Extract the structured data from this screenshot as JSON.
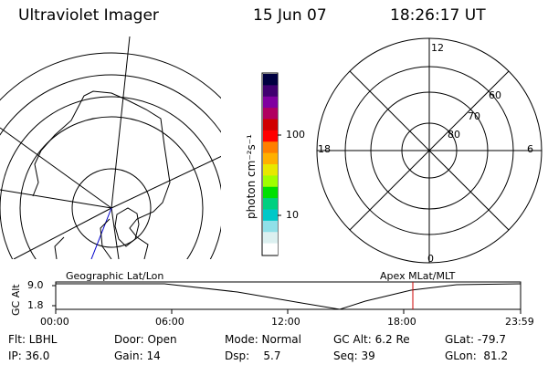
{
  "header": {
    "title": "Ultraviolet Imager",
    "date": "15 Jun 07",
    "time": "18:26:17 UT"
  },
  "geo_map": {
    "label": "Geographic Lat/Lon"
  },
  "colorbar": {
    "label": "photon cm⁻²s⁻¹",
    "ticks": [
      "100",
      "10"
    ],
    "colors": [
      "#000040",
      "#400070",
      "#8000a0",
      "#b00060",
      "#d00000",
      "#ff0000",
      "#ff7f00",
      "#ffb000",
      "#e8e800",
      "#a0ff00",
      "#00e000",
      "#00d080",
      "#00c8c8",
      "#90e0e8",
      "#dcf0f0",
      "#ffffff"
    ]
  },
  "polar_plot": {
    "label": "Apex MLat/MLT",
    "mlt_labels": {
      "top": "12",
      "right": "6",
      "bottom": "0",
      "left": "18"
    },
    "lat_labels": [
      "60",
      "70",
      "80"
    ]
  },
  "timeline": {
    "y_label": "GC Alt",
    "y_ticks": [
      "9.0",
      "1.8"
    ],
    "x_ticks": [
      "00:00",
      "06:00",
      "12:00",
      "18:00",
      "23:59"
    ],
    "current_marker_color": "#cc0000"
  },
  "status": {
    "row1": [
      "Flt: LBHL",
      "Door: Open",
      "Mode: Normal",
      "GC Alt: 6.2 Re",
      "GLat: -79.7"
    ],
    "row2": [
      "IP: 36.0",
      "Gain: 14",
      "Dsp:    5.7",
      "Seq: 39",
      "GLon:  81.2"
    ]
  }
}
